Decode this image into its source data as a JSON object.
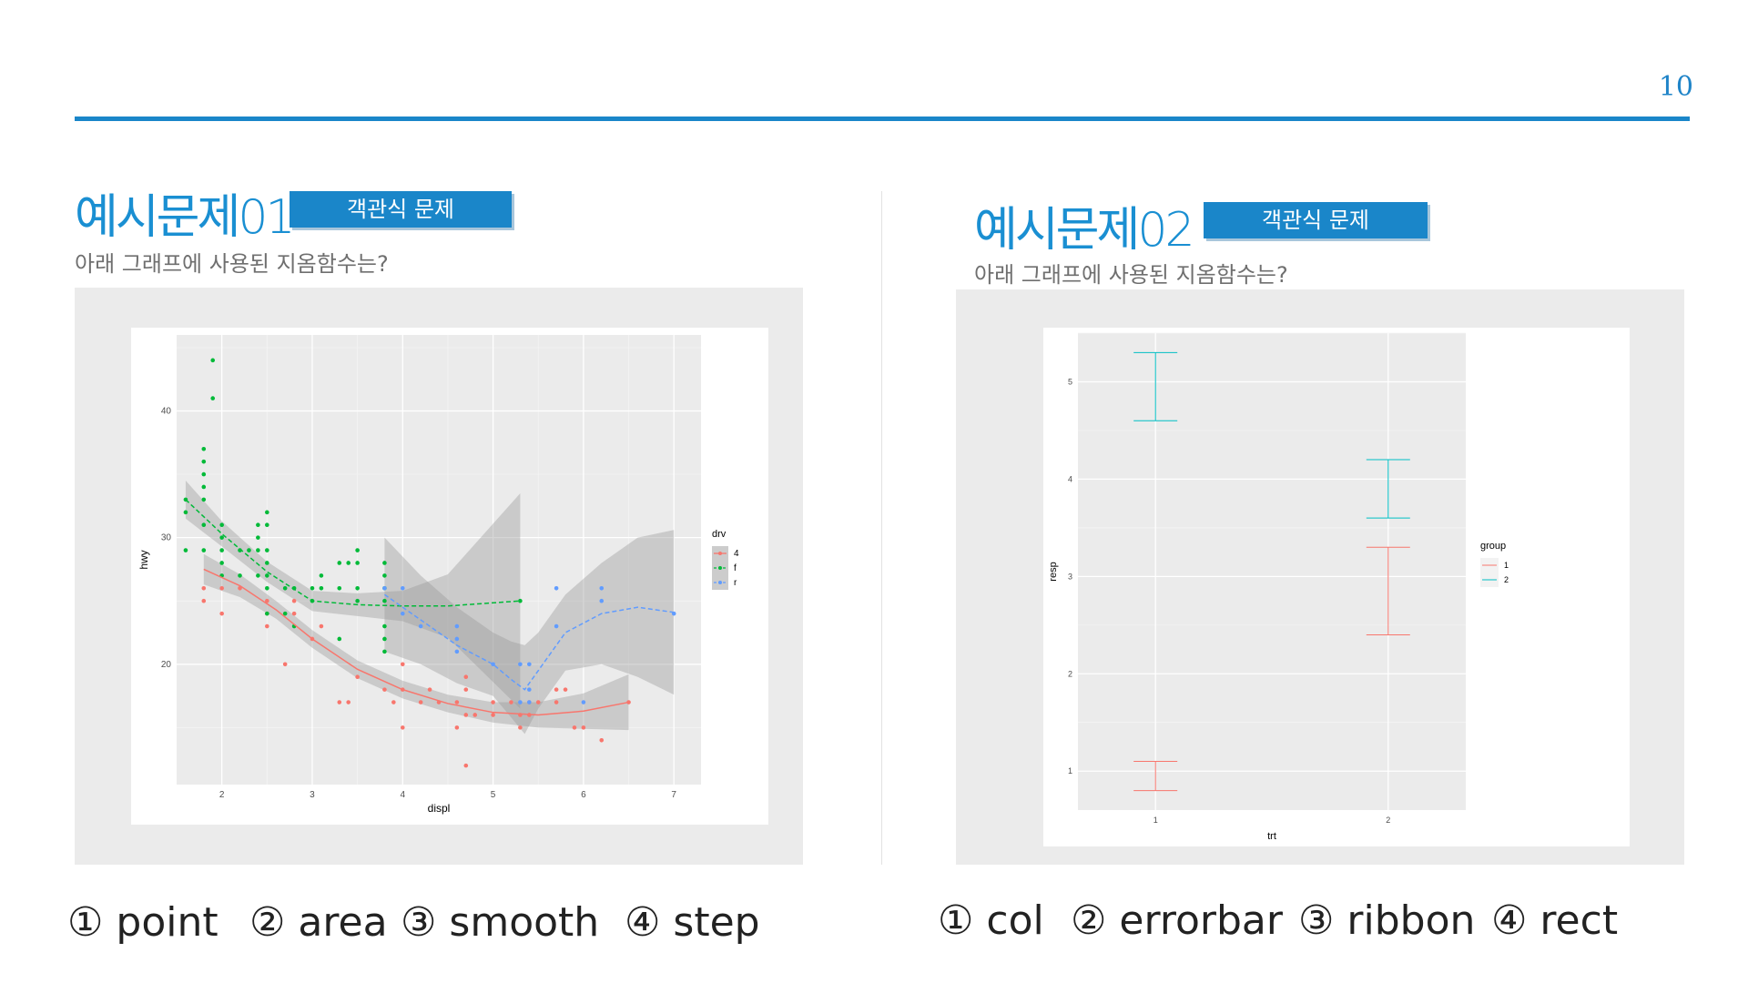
{
  "page_number": "10",
  "example1": {
    "title": "예시문제01",
    "badge": "객관식 문제",
    "question": "아래 그래프에 사용된 지옴함수는?",
    "options": [
      "① point",
      "② area",
      "③ smooth",
      "④ step"
    ]
  },
  "example2": {
    "title": "예시문제02",
    "badge": "객관식 문제",
    "question": "아래 그래프에 사용된 지옴함수는?",
    "options": [
      "① col",
      "② errorbar",
      "③ ribbon",
      "④ rect"
    ]
  },
  "chart_data": [
    {
      "type": "scatter",
      "xlabel": "displ",
      "ylabel": "hwy",
      "xlim": [
        1.5,
        7.3
      ],
      "ylim": [
        10.5,
        46
      ],
      "xticks": [
        2,
        3,
        4,
        5,
        6,
        7
      ],
      "yticks": [
        20,
        30,
        40
      ],
      "grid": true,
      "legend": {
        "title": "drv",
        "position": "right",
        "entries": [
          "4",
          "f",
          "r"
        ]
      },
      "series": [
        {
          "name": "4",
          "color": "#f8766d",
          "points": [
            [
              1.8,
              26
            ],
            [
              1.8,
              25
            ],
            [
              2.0,
              26
            ],
            [
              2.0,
              24
            ],
            [
              2.2,
              26
            ],
            [
              2.5,
              25
            ],
            [
              2.5,
              24
            ],
            [
              2.5,
              23
            ],
            [
              2.8,
              25
            ],
            [
              2.8,
              24
            ],
            [
              2.7,
              20
            ],
            [
              3.0,
              22
            ],
            [
              3.1,
              23
            ],
            [
              3.3,
              17
            ],
            [
              3.4,
              17
            ],
            [
              3.5,
              19
            ],
            [
              3.8,
              18
            ],
            [
              3.9,
              17
            ],
            [
              4.0,
              18
            ],
            [
              4.0,
              20
            ],
            [
              4.0,
              15
            ],
            [
              4.2,
              17
            ],
            [
              4.3,
              18
            ],
            [
              4.4,
              17
            ],
            [
              4.6,
              17
            ],
            [
              4.6,
              15
            ],
            [
              4.7,
              18
            ],
            [
              4.7,
              16
            ],
            [
              4.7,
              19
            ],
            [
              4.7,
              12
            ],
            [
              4.8,
              16
            ],
            [
              5.0,
              17
            ],
            [
              5.0,
              16
            ],
            [
              5.2,
              17
            ],
            [
              5.3,
              16
            ],
            [
              5.3,
              15
            ],
            [
              5.4,
              17
            ],
            [
              5.4,
              16
            ],
            [
              5.5,
              17
            ],
            [
              5.7,
              18
            ],
            [
              5.7,
              17
            ],
            [
              5.8,
              18
            ],
            [
              5.9,
              15
            ],
            [
              6.0,
              15
            ],
            [
              6.2,
              14
            ],
            [
              6.5,
              17
            ]
          ],
          "smooth": [
            [
              1.8,
              27.5
            ],
            [
              2.2,
              26.2
            ],
            [
              2.6,
              24.3
            ],
            [
              3.0,
              22.0
            ],
            [
              3.5,
              19.6
            ],
            [
              4.0,
              18.0
            ],
            [
              4.5,
              16.9
            ],
            [
              5.0,
              16.2
            ],
            [
              5.5,
              16.0
            ],
            [
              6.0,
              16.3
            ],
            [
              6.5,
              17.0
            ]
          ],
          "band": [
            1.2,
            0.9,
            0.7,
            0.7,
            0.7,
            0.7,
            0.7,
            0.8,
            1.0,
            1.4,
            2.2
          ]
        },
        {
          "name": "f",
          "color": "#00ba38",
          "points": [
            [
              1.6,
              33
            ],
            [
              1.6,
              32
            ],
            [
              1.6,
              29
            ],
            [
              1.8,
              37
            ],
            [
              1.8,
              36
            ],
            [
              1.8,
              35
            ],
            [
              1.8,
              34
            ],
            [
              1.8,
              33
            ],
            [
              1.8,
              29
            ],
            [
              1.8,
              31
            ],
            [
              1.9,
              44
            ],
            [
              1.9,
              41
            ],
            [
              2.0,
              31
            ],
            [
              2.0,
              30
            ],
            [
              2.0,
              29
            ],
            [
              2.0,
              28
            ],
            [
              2.0,
              27
            ],
            [
              2.2,
              29
            ],
            [
              2.2,
              27
            ],
            [
              2.3,
              29
            ],
            [
              2.4,
              31
            ],
            [
              2.4,
              30
            ],
            [
              2.4,
              29
            ],
            [
              2.4,
              27
            ],
            [
              2.5,
              32
            ],
            [
              2.5,
              31
            ],
            [
              2.5,
              29
            ],
            [
              2.5,
              28
            ],
            [
              2.5,
              27
            ],
            [
              2.5,
              26
            ],
            [
              2.5,
              24
            ],
            [
              2.7,
              26
            ],
            [
              2.7,
              24
            ],
            [
              2.8,
              23
            ],
            [
              2.8,
              26
            ],
            [
              3.0,
              26
            ],
            [
              3.0,
              25
            ],
            [
              3.1,
              27
            ],
            [
              3.1,
              26
            ],
            [
              3.3,
              28
            ],
            [
              3.3,
              26
            ],
            [
              3.3,
              22
            ],
            [
              3.4,
              28
            ],
            [
              3.5,
              29
            ],
            [
              3.5,
              28
            ],
            [
              3.5,
              26
            ],
            [
              3.5,
              25
            ],
            [
              3.8,
              28
            ],
            [
              3.8,
              27
            ],
            [
              3.8,
              26
            ],
            [
              3.8,
              25
            ],
            [
              3.8,
              23
            ],
            [
              3.8,
              22
            ],
            [
              3.8,
              21
            ],
            [
              5.3,
              25
            ]
          ],
          "smooth": [
            [
              1.6,
              33.0
            ],
            [
              2.0,
              30.3
            ],
            [
              2.5,
              27.3
            ],
            [
              3.0,
              25.0
            ],
            [
              3.5,
              24.7
            ],
            [
              4.0,
              24.6
            ],
            [
              4.5,
              24.6
            ],
            [
              5.3,
              25.0
            ]
          ],
          "band": [
            1.5,
            1.0,
            0.8,
            0.8,
            0.9,
            1.2,
            2.5,
            8.5
          ]
        },
        {
          "name": "r",
          "color": "#619cff",
          "points": [
            [
              3.8,
              26
            ],
            [
              4.0,
              24
            ],
            [
              4.0,
              26
            ],
            [
              4.2,
              23
            ],
            [
              4.6,
              22
            ],
            [
              4.6,
              23
            ],
            [
              4.6,
              21
            ],
            [
              5.0,
              20
            ],
            [
              5.3,
              17
            ],
            [
              5.3,
              20
            ],
            [
              5.4,
              20
            ],
            [
              5.4,
              18
            ],
            [
              5.4,
              17
            ],
            [
              5.7,
              26
            ],
            [
              5.7,
              23
            ],
            [
              6.0,
              17
            ],
            [
              6.2,
              26
            ],
            [
              6.2,
              25
            ],
            [
              7.0,
              24
            ]
          ],
          "smooth": [
            [
              3.8,
              25.5
            ],
            [
              4.2,
              23.5
            ],
            [
              4.6,
              21.5
            ],
            [
              5.0,
              20.0
            ],
            [
              5.2,
              18.8
            ],
            [
              5.35,
              18.0
            ],
            [
              5.5,
              19.5
            ],
            [
              5.8,
              22.5
            ],
            [
              6.2,
              24.0
            ],
            [
              6.6,
              24.5
            ],
            [
              7.0,
              24.1
            ]
          ],
          "band": [
            4.5,
            3.5,
            3.0,
            2.5,
            3.0,
            3.5,
            3.0,
            3.0,
            4.0,
            5.5,
            6.5
          ]
        }
      ]
    },
    {
      "type": "errorbar",
      "xlabel": "trt",
      "ylabel": "resp",
      "xticks": [
        "1",
        "2"
      ],
      "yticks": [
        1,
        2,
        3,
        4,
        5
      ],
      "ylim": [
        0.6,
        5.5
      ],
      "grid": true,
      "legend": {
        "title": "group",
        "position": "right",
        "entries": [
          "1",
          "2"
        ]
      },
      "series": [
        {
          "name": "1",
          "color": "#f8766d",
          "bars": [
            {
              "x": "1",
              "lower": 0.8,
              "upper": 1.1
            },
            {
              "x": "2",
              "lower": 2.4,
              "upper": 3.3
            }
          ]
        },
        {
          "name": "2",
          "color": "#00bfc4",
          "bars": [
            {
              "x": "1",
              "lower": 4.6,
              "upper": 5.3
            },
            {
              "x": "2",
              "lower": 3.6,
              "upper": 4.2
            }
          ]
        }
      ]
    }
  ]
}
